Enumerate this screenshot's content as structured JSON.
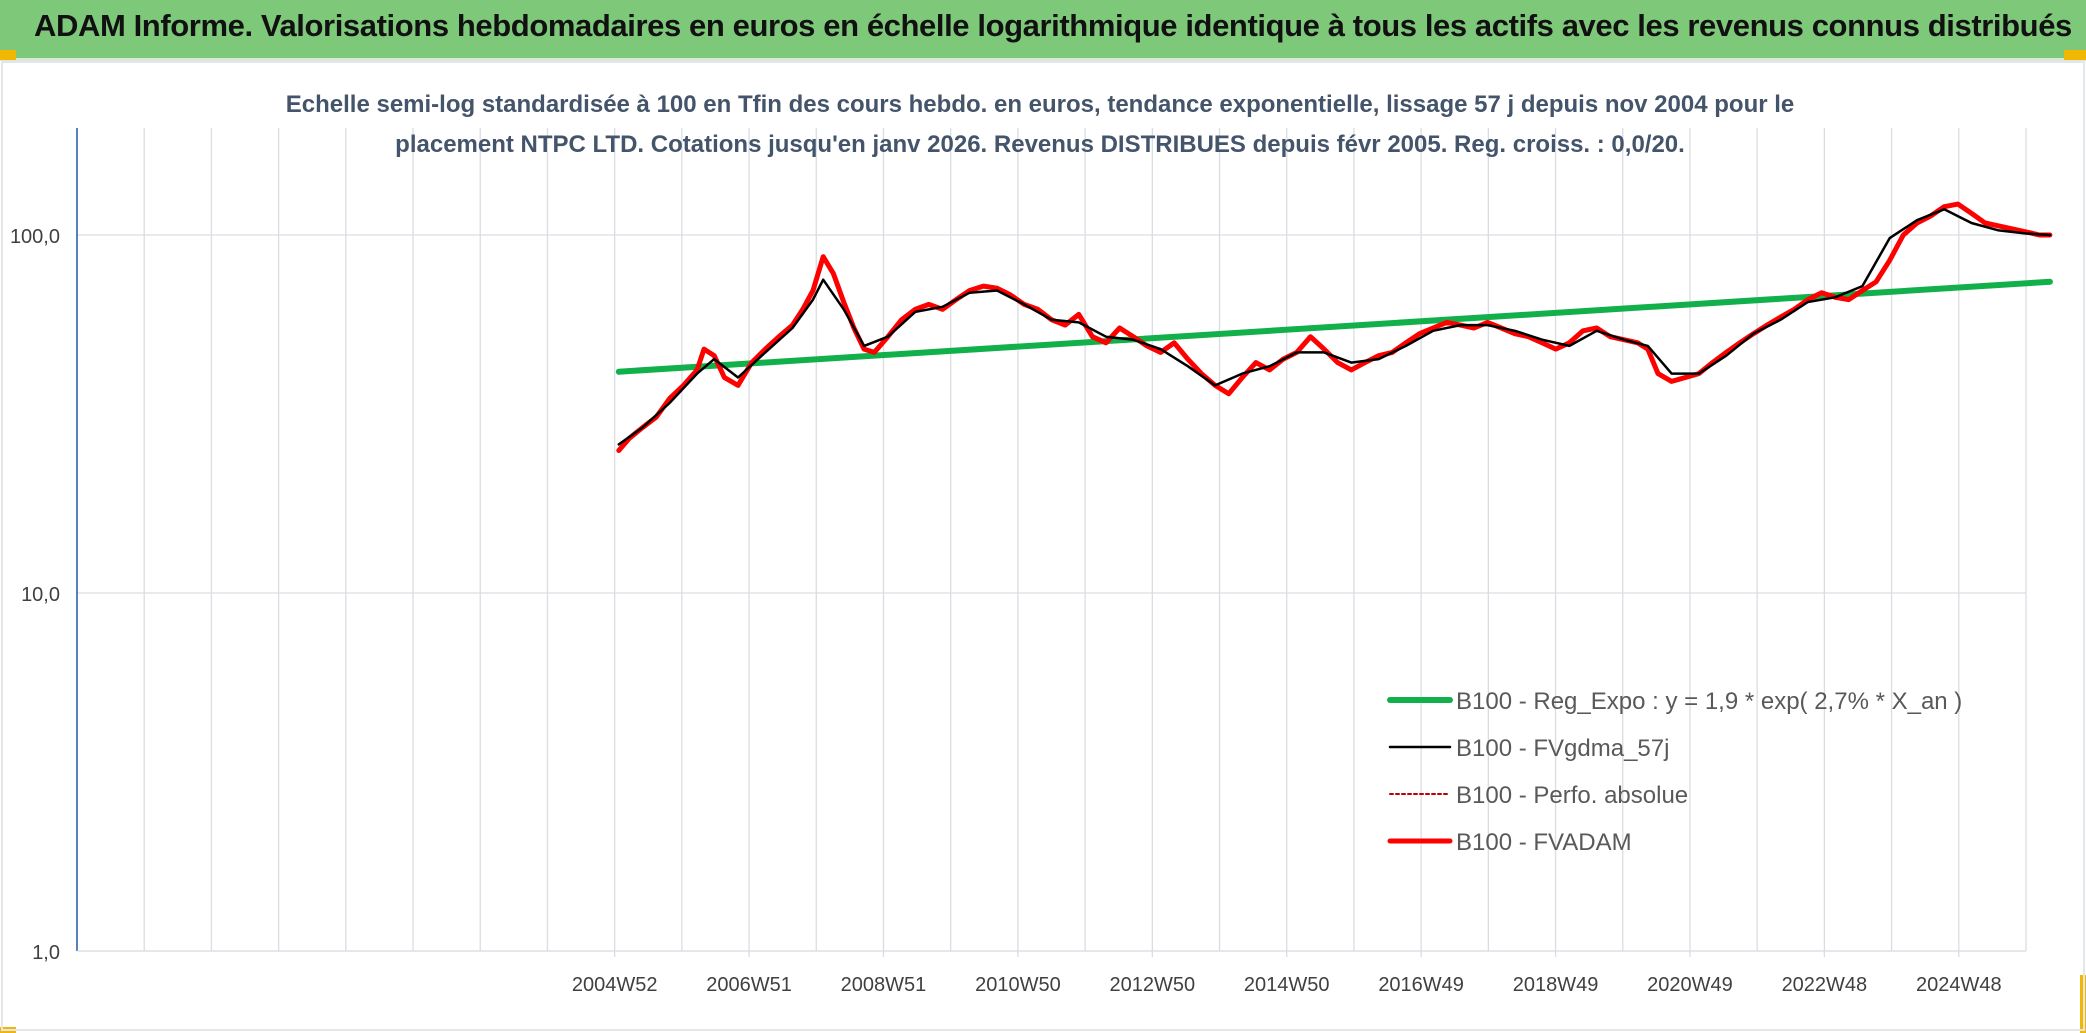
{
  "banner": {
    "title": "ADAM Informe. Valorisations hebdomadaires en euros en échelle logarithmique identique à tous les actifs avec les revenus connus distribués"
  },
  "colors": {
    "banner_bg": "#7ec87a",
    "regression": "#12b04a",
    "smoothed": "#000000",
    "absolute": "#c00000",
    "fvadam": "#ff0000",
    "grid": "#d9dde3",
    "axis": "#2e62a8",
    "title_text": "#44546a"
  },
  "chart_data": {
    "type": "line",
    "title_lines": [
      "Echelle semi-log standardisée à 100 en Tfin des cours hebdo. en euros, tendance exponentielle, lissage 57 j depuis nov 2004 pour le",
      "placement NTPC LTD. Cotations jusqu'en janv 2026. Revenus DISTRIBUES depuis févr 2005. Reg. croiss. : 0,0/20."
    ],
    "y_scale": "log",
    "ylim": [
      1,
      200
    ],
    "y_ticks": [
      {
        "value": 1,
        "label": "1,0"
      },
      {
        "value": 10,
        "label": "10,0"
      },
      {
        "value": 100,
        "label": "100,0"
      }
    ],
    "x_tick_labels": [
      "2004W52",
      "2006W51",
      "2008W51",
      "2010W50",
      "2012W50",
      "2014W50",
      "2016W49",
      "2018W49",
      "2020W49",
      "2022W48",
      "2024W48"
    ],
    "x_range_years": [
      1997,
      2025.6
    ],
    "grid": true,
    "legend_position": "lower-right",
    "legend": [
      {
        "key": "regression",
        "label": "B100 - Reg_Expo : y = 1,9 * exp( 2,7% *  X_an )",
        "style": "thick"
      },
      {
        "key": "smoothed",
        "label": "B100 - FVgdma_57j",
        "style": "solid"
      },
      {
        "key": "absolute",
        "label": "B100 - Perfo. absolue",
        "style": "dotted"
      },
      {
        "key": "fvadam",
        "label": "B100 - FVADAM",
        "style": "thick"
      }
    ],
    "series": [
      {
        "name": "B100 - Reg_Expo : y = 1,9 * exp( 2,7% *  X_an )",
        "key": "regression",
        "x": [
          2004.95,
          2025.95
        ],
        "y": [
          41.5,
          74
        ]
      },
      {
        "name": "B100 - FVADAM",
        "key": "fvadam",
        "x": [
          2004.95,
          2005.1,
          2005.3,
          2005.5,
          2005.7,
          2005.9,
          2006.1,
          2006.2,
          2006.35,
          2006.5,
          2006.7,
          2006.9,
          2007.1,
          2007.3,
          2007.5,
          2007.65,
          2007.8,
          2007.95,
          2008.1,
          2008.25,
          2008.4,
          2008.55,
          2008.7,
          2008.9,
          2009.1,
          2009.3,
          2009.5,
          2009.7,
          2009.9,
          2010.1,
          2010.3,
          2010.5,
          2010.7,
          2010.9,
          2011.1,
          2011.3,
          2011.5,
          2011.7,
          2011.9,
          2012.1,
          2012.3,
          2012.5,
          2012.7,
          2012.9,
          2013.1,
          2013.3,
          2013.5,
          2013.7,
          2013.9,
          2014.1,
          2014.3,
          2014.5,
          2014.7,
          2014.9,
          2015.1,
          2015.3,
          2015.5,
          2015.7,
          2015.9,
          2016.1,
          2016.3,
          2016.5,
          2016.7,
          2016.9,
          2017.1,
          2017.3,
          2017.5,
          2017.7,
          2017.9,
          2018.1,
          2018.3,
          2018.5,
          2018.7,
          2018.9,
          2019.1,
          2019.3,
          2019.5,
          2019.7,
          2019.9,
          2020.05,
          2020.2,
          2020.4,
          2020.6,
          2020.8,
          2021.0,
          2021.2,
          2021.4,
          2021.6,
          2021.8,
          2022.0,
          2022.2,
          2022.4,
          2022.6,
          2022.8,
          2023.0,
          2023.2,
          2023.4,
          2023.6,
          2023.8,
          2024.0,
          2024.2,
          2024.4,
          2024.6,
          2024.8,
          2025.0,
          2025.2,
          2025.4,
          2025.6,
          2025.8,
          2025.95
        ],
        "y": [
          25,
          27,
          29,
          31,
          35,
          38,
          42,
          48,
          46,
          40,
          38,
          44,
          48,
          52,
          56,
          62,
          70,
          87,
          78,
          65,
          55,
          48,
          47,
          52,
          58,
          62,
          64,
          62,
          66,
          70,
          72,
          71,
          68,
          64,
          62,
          58,
          56,
          60,
          52,
          50,
          55,
          52,
          49,
          47,
          50,
          45,
          41,
          38,
          36,
          40,
          44,
          42,
          45,
          47,
          52,
          48,
          44,
          42,
          44,
          46,
          47,
          50,
          53,
          55,
          57,
          56,
          55,
          57,
          55,
          53,
          52,
          50,
          48,
          50,
          54,
          55,
          52,
          51,
          50,
          48,
          41,
          39,
          40,
          41,
          44,
          47,
          50,
          53,
          56,
          59,
          62,
          66,
          69,
          67,
          66,
          70,
          74,
          85,
          100,
          108,
          113,
          120,
          122,
          115,
          108,
          106,
          104,
          102,
          100,
          100
        ]
      },
      {
        "name": "B100 - FVgdma_57j",
        "key": "smoothed",
        "x": [
          2004.95,
          2005.3,
          2005.7,
          2006.1,
          2006.35,
          2006.7,
          2007.1,
          2007.5,
          2007.8,
          2007.95,
          2008.25,
          2008.55,
          2008.9,
          2009.3,
          2009.7,
          2010.1,
          2010.5,
          2010.9,
          2011.3,
          2011.7,
          2012.1,
          2012.5,
          2012.9,
          2013.3,
          2013.7,
          2014.1,
          2014.5,
          2014.9,
          2015.3,
          2015.7,
          2016.1,
          2016.5,
          2016.9,
          2017.3,
          2017.7,
          2018.1,
          2018.5,
          2018.9,
          2019.3,
          2019.7,
          2020.05,
          2020.4,
          2020.8,
          2021.2,
          2021.6,
          2022.0,
          2022.4,
          2022.8,
          2023.2,
          2023.6,
          2024.0,
          2024.4,
          2024.8,
          2025.2,
          2025.6,
          2025.95
        ],
        "y": [
          26,
          29,
          34,
          41,
          45,
          40,
          47,
          55,
          66,
          75,
          62,
          49,
          52,
          61,
          63,
          69,
          70,
          64,
          58,
          57,
          52,
          51,
          48,
          43,
          38,
          41,
          43,
          47,
          47,
          44,
          45,
          49,
          54,
          56,
          56,
          54,
          51,
          49,
          54,
          51,
          49,
          41,
          41,
          46,
          53,
          58,
          65,
          67,
          72,
          98,
          110,
          118,
          108,
          103,
          101,
          100
        ]
      }
    ]
  }
}
